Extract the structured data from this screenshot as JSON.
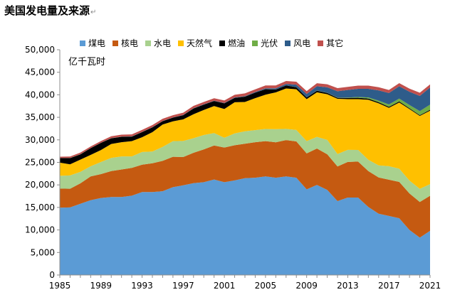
{
  "chart_data": {
    "type": "area",
    "stacked": true,
    "title": "美国发电量及来源",
    "title_mark": "↵",
    "unit_label": "亿千瓦时",
    "x": [
      1985,
      1986,
      1987,
      1988,
      1989,
      1990,
      1991,
      1992,
      1993,
      1994,
      1995,
      1996,
      1997,
      1998,
      1999,
      2000,
      2001,
      2002,
      2003,
      2004,
      2005,
      2006,
      2007,
      2008,
      2009,
      2010,
      2011,
      2012,
      2013,
      2014,
      2015,
      2016,
      2017,
      2018,
      2019,
      2020,
      2021
    ],
    "x_tick_labels": [
      "1985",
      "1989",
      "1993",
      "1997",
      "2001",
      "2005",
      "2009",
      "2013",
      "2017",
      "2021"
    ],
    "x_tick_values": [
      1985,
      1989,
      1993,
      1997,
      2001,
      2005,
      2009,
      2013,
      2017,
      2021
    ],
    "ylim": [
      0,
      50000
    ],
    "y_tick_values": [
      0,
      5000,
      10000,
      15000,
      20000,
      25000,
      30000,
      35000,
      40000,
      45000,
      50000
    ],
    "y_tick_labels": [
      "0",
      "5,000",
      "10,000",
      "15,000",
      "20,000",
      "25,000",
      "30,000",
      "35,000",
      "40,000",
      "45,000",
      "50,000"
    ],
    "series": [
      {
        "name": "煤电",
        "color": "#5b9bd5",
        "values": [
          14960,
          15000,
          15800,
          16600,
          17100,
          17300,
          17300,
          17600,
          18400,
          18400,
          18600,
          19500,
          19900,
          20400,
          20600,
          21200,
          20600,
          21000,
          21500,
          21600,
          21900,
          21600,
          21900,
          21600,
          19000,
          20000,
          18900,
          16400,
          17200,
          17200,
          15100,
          13600,
          13100,
          12600,
          10000,
          8300,
          9800
        ]
      },
      {
        "name": "核电",
        "color": "#c55a11",
        "values": [
          4220,
          4150,
          4550,
          5270,
          5290,
          5770,
          6130,
          6190,
          6100,
          6400,
          6730,
          6750,
          6280,
          6730,
          7280,
          7540,
          7690,
          7800,
          7640,
          7880,
          7820,
          7870,
          8060,
          8060,
          7990,
          8070,
          7900,
          7690,
          7890,
          7970,
          7970,
          8050,
          8050,
          8070,
          8090,
          7900,
          7780
        ]
      },
      {
        "name": "水电",
        "color": "#a9d18e",
        "values": [
          2840,
          2940,
          2530,
          2260,
          2690,
          2930,
          2890,
          2530,
          2810,
          2610,
          3110,
          3470,
          3560,
          3240,
          3190,
          2760,
          2170,
          2640,
          2760,
          2680,
          2700,
          2890,
          2470,
          2540,
          2730,
          2600,
          3190,
          2760,
          2690,
          2590,
          2490,
          2680,
          3000,
          2920,
          2880,
          2910,
          2600
        ]
      },
      {
        "name": "天然气",
        "color": "#ffc000",
        "values": [
          2920,
          2490,
          2730,
          2530,
          2670,
          3090,
          3160,
          3400,
          3280,
          4290,
          4960,
          4390,
          4800,
          5310,
          5560,
          6010,
          6390,
          6910,
          6500,
          7100,
          7610,
          8170,
          8970,
          9030,
          9310,
          9880,
          10140,
          12260,
          11250,
          11270,
          13330,
          13780,
          12960,
          14690,
          15860,
          16200,
          16300
        ]
      },
      {
        "name": "燃油",
        "color": "#000000",
        "values": [
          1000,
          1370,
          1180,
          1490,
          1580,
          1260,
          1200,
          1010,
          1130,
          1060,
          750,
          820,
          930,
          1290,
          1190,
          1110,
          1250,
          950,
          1190,
          1210,
          1220,
          640,
          660,
          460,
          390,
          370,
          300,
          230,
          270,
          300,
          280,
          240,
          210,
          250,
          180,
          170,
          190
        ]
      },
      {
        "name": "光伏",
        "color": "#70ad47",
        "values": [
          5,
          5,
          5,
          5,
          5,
          5,
          10,
          10,
          10,
          10,
          10,
          10,
          10,
          10,
          10,
          10,
          10,
          10,
          10,
          10,
          10,
          10,
          10,
          10,
          10,
          20,
          20,
          40,
          90,
          180,
          250,
          360,
          530,
          640,
          720,
          890,
          1150
        ]
      },
      {
        "name": "风电",
        "color": "#2e5c8a",
        "values": [
          10,
          20,
          20,
          20,
          20,
          30,
          30,
          30,
          30,
          40,
          40,
          40,
          40,
          40,
          50,
          60,
          70,
          110,
          110,
          140,
          180,
          270,
          350,
          560,
          740,
          950,
          1200,
          1410,
          1680,
          1820,
          1910,
          2270,
          2540,
          2730,
          2950,
          3380,
          3800
        ]
      },
      {
        "name": "其它",
        "color": "#c0504d",
        "values": [
          300,
          320,
          340,
          360,
          380,
          400,
          430,
          450,
          460,
          470,
          480,
          490,
          500,
          520,
          530,
          560,
          560,
          580,
          600,
          600,
          620,
          620,
          640,
          650,
          650,
          680,
          690,
          690,
          700,
          700,
          700,
          700,
          690,
          690,
          690,
          700,
          700
        ]
      }
    ]
  }
}
